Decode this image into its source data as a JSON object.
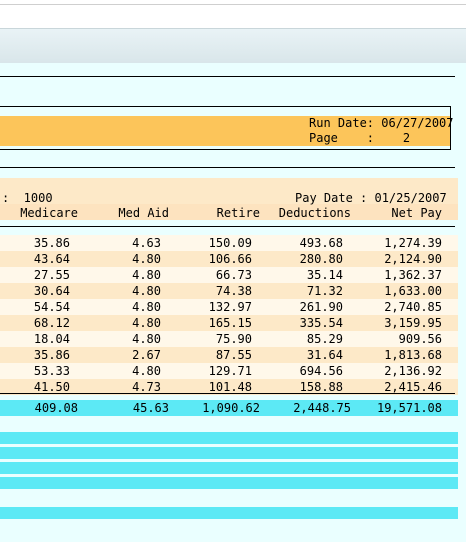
{
  "header": {
    "run_date_label": "Run Date: 06/27/2007",
    "page_label": "Page    :    2"
  },
  "group": {
    "prefix": ":  1000",
    "pay_date": "Pay Date : 01/25/2007"
  },
  "columns": [
    "Medicare",
    "Med Aid",
    "Retire",
    "Deductions",
    "Net Pay"
  ],
  "rows": [
    [
      "35.86",
      "4.63",
      "150.09",
      "493.68",
      "1,274.39"
    ],
    [
      "43.64",
      "4.80",
      "106.66",
      "280.80",
      "2,124.90"
    ],
    [
      "27.55",
      "4.80",
      "66.73",
      "35.14",
      "1,362.37"
    ],
    [
      "30.64",
      "4.80",
      "74.38",
      "71.32",
      "1,633.00"
    ],
    [
      "54.54",
      "4.80",
      "132.97",
      "261.90",
      "2,740.85"
    ],
    [
      "68.12",
      "4.80",
      "165.15",
      "335.54",
      "3,159.95"
    ],
    [
      "18.04",
      "4.80",
      "75.90",
      "85.29",
      "909.56"
    ],
    [
      "35.86",
      "2.67",
      "87.55",
      "31.64",
      "1,813.68"
    ],
    [
      "53.33",
      "4.80",
      "129.71",
      "694.56",
      "2,136.92"
    ],
    [
      "41.50",
      "4.73",
      "101.48",
      "158.88",
      "2,415.46"
    ]
  ],
  "totals": [
    "409.08",
    "45.63",
    "1,090.62",
    "2,448.75",
    "19,571.08"
  ]
}
